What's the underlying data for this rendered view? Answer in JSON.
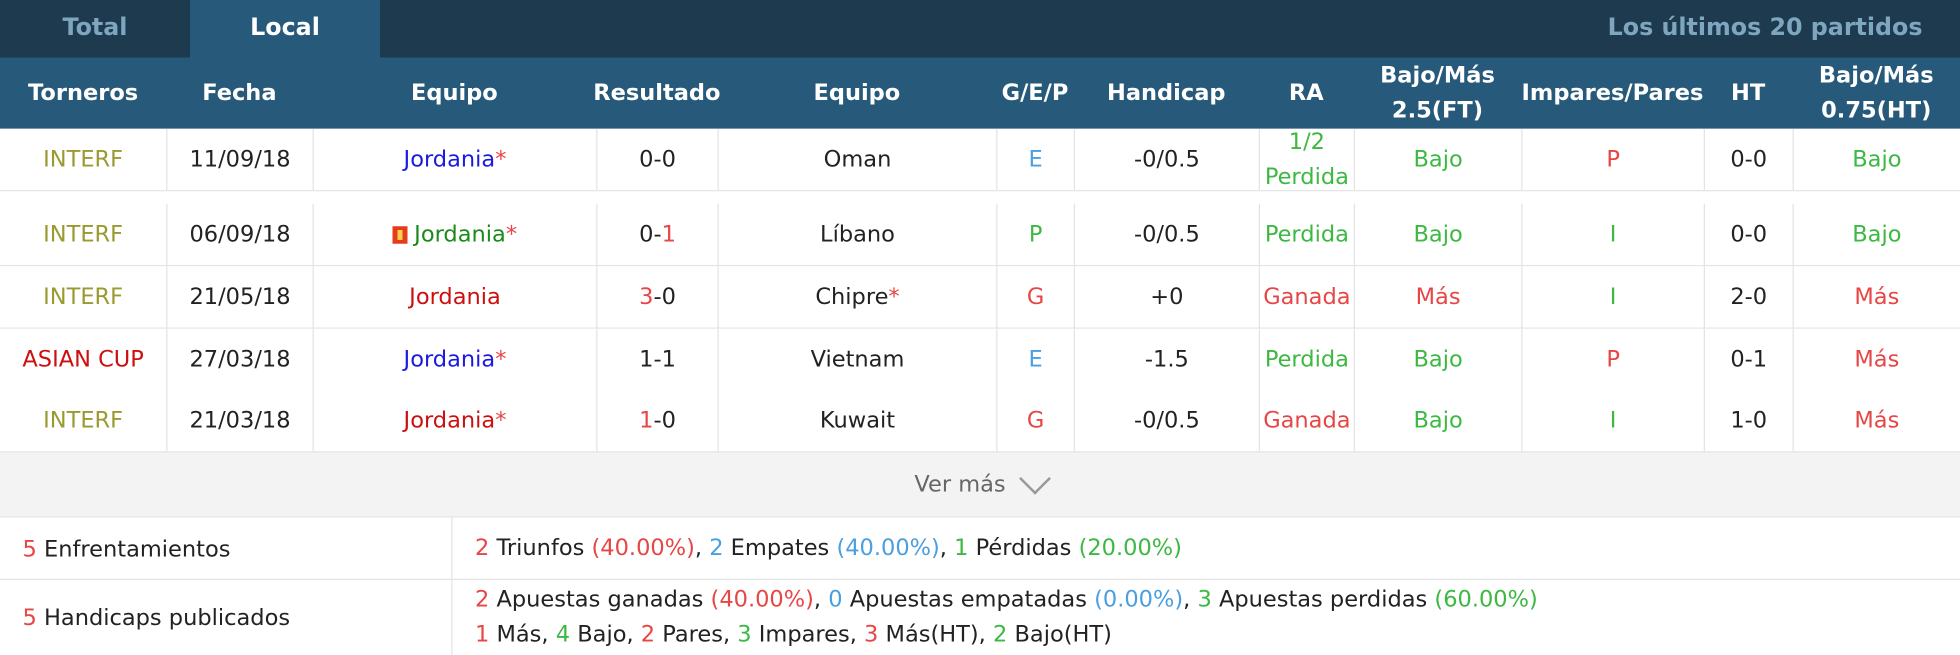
{
  "tabs": {
    "total": "Total",
    "local": "Local",
    "last_n": "Los últimos 20 partidos"
  },
  "columns": {
    "torneos": "Torneros",
    "fecha": "Fecha",
    "equipo1": "Equipo",
    "resultado": "Resultado",
    "equipo2": "Equipo",
    "gep": "G/E/P",
    "handicap": "Handicap",
    "ra": "RA",
    "bm25_l1": "Bajo/Más",
    "bm25_l2": "2.5(FT)",
    "ip": "Impares/Pares",
    "ht": "HT",
    "bm075_l1": "Bajo/Más",
    "bm075_l2": "0.75(HT)"
  },
  "rows": [
    {
      "torneo": "INTERF",
      "fecha": "11/09/18",
      "equipo1": "Jordania",
      "e1_star": "*",
      "res_h": "0",
      "res_sep": "-",
      "res_a": "0",
      "equipo2": "Oman",
      "e2_star": "",
      "gep": "E",
      "handicap": "-0/0.5",
      "ra_l1": "1/2",
      "ra_l2": "Perdida",
      "bm": "Bajo",
      "ip": "P",
      "ht": "0-0",
      "bmht": "Bajo"
    },
    {
      "torneo": "INTERF",
      "fecha": "06/09/18",
      "equipo1": "Jordania",
      "e1_star": "*",
      "res_h": "0",
      "res_sep": "-",
      "res_a": "1",
      "equipo2": "Líbano",
      "e2_star": "",
      "gep": "P",
      "handicap": "-0/0.5",
      "ra_l1": "",
      "ra_l2": "Perdida",
      "bm": "Bajo",
      "ip": "I",
      "ht": "0-0",
      "bmht": "Bajo"
    },
    {
      "torneo": "INTERF",
      "fecha": "21/05/18",
      "equipo1": "Jordania",
      "e1_star": "",
      "res_h": "3",
      "res_sep": "-",
      "res_a": "0",
      "equipo2": "Chipre",
      "e2_star": "*",
      "gep": "G",
      "handicap": "+0",
      "ra_l1": "",
      "ra_l2": "Ganada",
      "bm": "Más",
      "ip": "I",
      "ht": "2-0",
      "bmht": "Más"
    },
    {
      "torneo": "ASIAN CUP",
      "fecha": "27/03/18",
      "equipo1": "Jordania",
      "e1_star": "*",
      "res_h": "1",
      "res_sep": "-",
      "res_a": "1",
      "equipo2": "Vietnam",
      "e2_star": "",
      "gep": "E",
      "handicap": "-1.5",
      "ra_l1": "",
      "ra_l2": "Perdida",
      "bm": "Bajo",
      "ip": "P",
      "ht": "0-1",
      "bmht": "Más"
    },
    {
      "torneo": "INTERF",
      "fecha": "21/03/18",
      "equipo1": "Jordania",
      "e1_star": "*",
      "res_h": "1",
      "res_sep": "-",
      "res_a": "0",
      "equipo2": "Kuwait",
      "e2_star": "",
      "gep": "G",
      "handicap": "-0/0.5",
      "ra_l1": "",
      "ra_l2": "Ganada",
      "bm": "Bajo",
      "ip": "I",
      "ht": "1-0",
      "bmht": "Más"
    }
  ],
  "ver_mas": "Ver más",
  "summary": {
    "enfrentamientos": {
      "count": "5",
      "label": "Enfrentamientos",
      "w": "2",
      "w_label": "Triunfos",
      "w_pct": "(40.00%)",
      "d": "2",
      "d_label": "Empates",
      "d_pct": "(40.00%)",
      "l": "1",
      "l_label": "Pérdidas",
      "l_pct": "(20.00%)"
    },
    "handicaps": {
      "count": "5",
      "label": "Handicaps publicados",
      "won": "2",
      "won_label": "Apuestas ganadas",
      "won_pct": "(40.00%)",
      "push": "0",
      "push_label": "Apuestas empatadas",
      "push_pct": "(0.00%)",
      "lost": "3",
      "lost_label": "Apuestas perdidas",
      "lost_pct": "(60.00%)",
      "mas": "1",
      "mas_label": "Más",
      "bajo": "4",
      "bajo_label": "Bajo",
      "pares": "2",
      "pares_label": "Pares",
      "impares": "3",
      "impares_label": "Impares",
      "masht": "3",
      "masht_label": "Más(HT)",
      "bajoht": "2",
      "bajoht_label": "Bajo(HT)"
    }
  }
}
